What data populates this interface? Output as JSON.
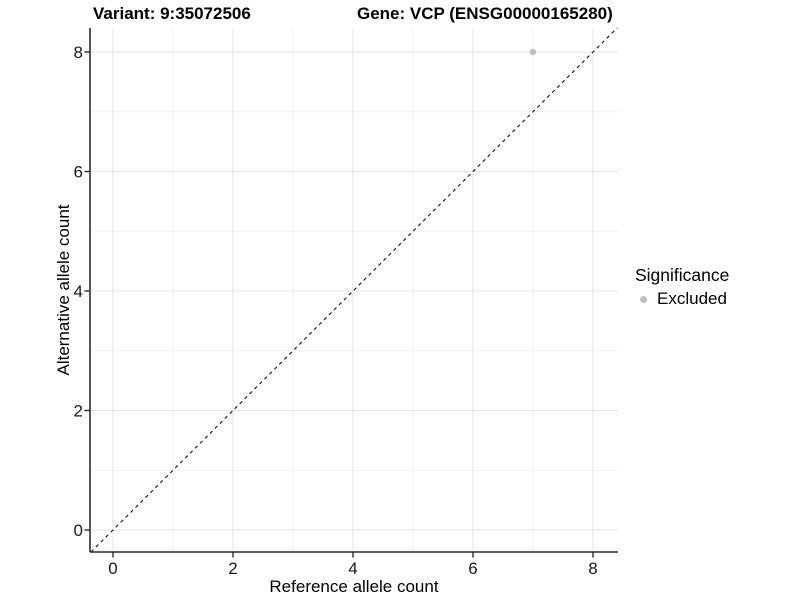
{
  "header": {
    "title_variant": "Variant: 9:35072506",
    "title_gene": "Gene: VCP (ENSG00000165280)"
  },
  "chart_data": {
    "type": "scatter",
    "title_variant": "Variant: 9:35072506",
    "title_gene": "Gene: VCP (ENSG00000165280)",
    "xlabel": "Reference allele count",
    "ylabel": "Alternative allele count",
    "xlim": [
      -0.4,
      8.4
    ],
    "ylim": [
      -0.4,
      8.4
    ],
    "xticks": [
      0,
      2,
      4,
      6,
      8
    ],
    "yticks": [
      0,
      2,
      4,
      6,
      8
    ],
    "minor_xticks": [
      1,
      3,
      5,
      7
    ],
    "minor_yticks": [
      1,
      3,
      5,
      7
    ],
    "grid": true,
    "points": [
      {
        "x": 7,
        "y": 8,
        "series": "Excluded"
      }
    ],
    "reference_line": {
      "slope": 1,
      "intercept": 0,
      "style": "dashed"
    },
    "legend": {
      "title": "Significance",
      "position": "right",
      "items": [
        {
          "label": "Excluded",
          "color": "#bdbdbd"
        }
      ]
    },
    "colors": {
      "point": "#bdbdbd",
      "reference_line": "#111111",
      "grid_major": "#e4e4e4",
      "grid_minor": "#f1f1f1",
      "axis": "#2b2b2b",
      "tick_label": "#1a1a1a"
    }
  }
}
